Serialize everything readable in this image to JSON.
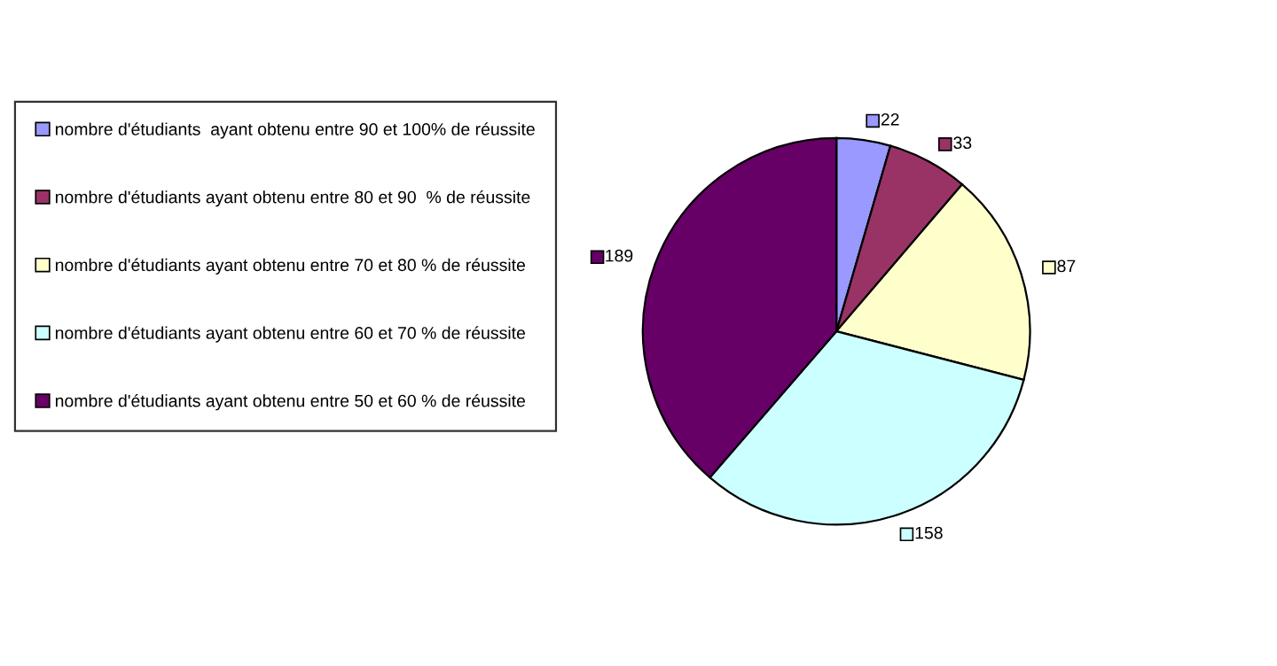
{
  "chart_data": {
    "type": "pie",
    "categories": [
      "nombre d'étudiants  ayant obtenu entre 90 et 100% de réussite",
      "nombre d'étudiants ayant obtenu entre 80 et 90  % de réussite",
      "nombre d'étudiants ayant obtenu entre 70 et 80 % de réussite",
      "nombre d'étudiants ayant obtenu entre 60 et 70 % de réussite",
      "nombre d'étudiants ayant obtenu entre 50 et 60 % de réussite"
    ],
    "values": [
      22,
      33,
      87,
      158,
      189
    ],
    "colors": [
      "#9999ff",
      "#993366",
      "#ffffcc",
      "#ccffff",
      "#660066"
    ],
    "data_labels": true,
    "legend": "left"
  }
}
